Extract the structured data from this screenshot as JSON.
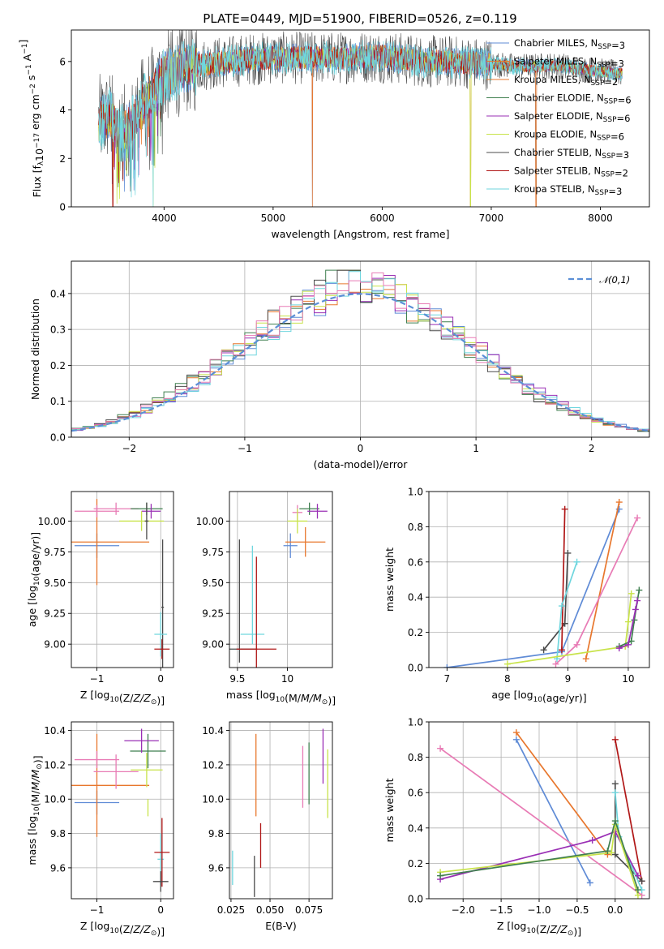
{
  "title": "PLATE=0449, MJD=51900, FIBERID=0526, z=0.119",
  "colors": {
    "chabrier_miles": "#5f8bd6",
    "salpeter_miles": "#e8772d",
    "kroupa_miles": "#e8772d",
    "chabrier_elodie": "#3f7f4f",
    "salpeter_elodie": "#9a2fb5",
    "kroupa_elodie": "#c8e34a",
    "chabrier_stelib": "#4b4b4b",
    "salpeter_stelib": "#b01717",
    "kroupa_stelib": "#6fd6de",
    "pink": "#e87bb5",
    "gaussian": "#5b8fd6",
    "grid": "#b0b0b0"
  },
  "chart_data": [
    {
      "id": "spectrum",
      "type": "line",
      "xlabel": "wavelength [Angstrom, rest frame]",
      "ylabel": "Flux [f_λ10^-17 erg cm^-2 s^-1 A^-1]",
      "xlim": [
        3150,
        8450
      ],
      "ylim": [
        0,
        7.3
      ],
      "xticks": [
        4000,
        5000,
        6000,
        7000,
        8000
      ],
      "yticks": [
        0,
        2,
        4,
        6
      ],
      "x_range_data": [
        3400,
        8200
      ],
      "profile_x": [
        3400,
        3450,
        3500,
        3550,
        3600,
        3700,
        3800,
        3900,
        4000,
        4100,
        4200,
        4400,
        4600,
        4800,
        5000,
        5200,
        5400,
        5600,
        5800,
        6000,
        6200,
        6400,
        6600,
        6800,
        7000,
        7200,
        7400,
        7600,
        7800,
        8000,
        8200
      ],
      "profile_y": [
        3.5,
        3.6,
        3.8,
        3.3,
        3.0,
        3.3,
        4.2,
        4.7,
        5.4,
        5.6,
        5.8,
        5.9,
        6.0,
        6.1,
        6.15,
        6.15,
        6.15,
        6.15,
        6.2,
        6.2,
        6.1,
        6.0,
        6.0,
        5.95,
        5.9,
        5.8,
        5.8,
        5.85,
        5.7,
        5.6,
        5.5
      ],
      "legend": [
        {
          "label": "Chabrier MILES, N_SSP=3",
          "color_key": "chabrier_miles"
        },
        {
          "label": "Salpeter MILES, N_SSP=3",
          "color_key": "salpeter_miles"
        },
        {
          "label": "Kroupa MILES, N_SSP=2",
          "color_key": "kroupa_miles"
        },
        {
          "label": "Chabrier ELODIE, N_SSP=6",
          "color_key": "chabrier_elodie"
        },
        {
          "label": "Salpeter ELODIE, N_SSP=6",
          "color_key": "salpeter_elodie"
        },
        {
          "label": "Kroupa ELODIE, N_SSP=6",
          "color_key": "kroupa_elodie"
        },
        {
          "label": "Chabrier STELIB, N_SSP=3",
          "color_key": "chabrier_stelib"
        },
        {
          "label": "Salpeter STELIB, N_SSP=2",
          "color_key": "salpeter_stelib"
        },
        {
          "label": "Kroupa STELIB, N_SSP=3",
          "color_key": "kroupa_stelib"
        }
      ]
    },
    {
      "id": "residuals",
      "type": "histogram",
      "xlabel": "(data-model)/error",
      "ylabel": "Normed distribution",
      "xlim": [
        -2.5,
        2.5
      ],
      "ylim": [
        0,
        0.49
      ],
      "xticks": [
        -2,
        -1,
        0,
        1,
        2
      ],
      "yticks": [
        0.0,
        0.1,
        0.2,
        0.3,
        0.4
      ],
      "legend": "𝒩(0,1)",
      "bin_width": 0.1,
      "n_bins": 50
    },
    {
      "id": "age_vs_Z",
      "type": "errorbar",
      "xlabel": "Z [log10(Z/Z⊙)]",
      "ylabel": "age  [log10(age/yr)]",
      "xlim": [
        -1.4,
        0.2
      ],
      "ylim": [
        8.81,
        10.24
      ],
      "xticks": [
        -1,
        0
      ],
      "yticks": [
        9.0,
        9.25,
        9.5,
        9.75,
        10.0
      ],
      "points": [
        {
          "c": "chabrier_miles",
          "x": -1.0,
          "xerr": 0.35,
          "y": 9.8,
          "yerr": 0.1
        },
        {
          "c": "salpeter_miles",
          "x": -1.0,
          "xerr": 0.82,
          "y": 9.83,
          "yerr": 0.35
        },
        {
          "c": "pink",
          "x": -1.0,
          "xerr": 0.35,
          "y": 10.08,
          "yerr": 0.05
        },
        {
          "c": "pink",
          "x": -0.7,
          "xerr": 0.35,
          "y": 10.1,
          "yerr": 0.05
        },
        {
          "c": "chabrier_elodie",
          "x": -0.22,
          "xerr": 0.25,
          "y": 10.1,
          "yerr": 0.05
        },
        {
          "c": "salpeter_elodie",
          "x": -0.15,
          "xerr": 0.15,
          "y": 10.08,
          "yerr": 0.06
        },
        {
          "c": "kroupa_elodie",
          "x": -0.3,
          "xerr": 0.35,
          "y": 10.0,
          "yerr": 0.08
        },
        {
          "c": "chabrier_stelib",
          "x": -0.22,
          "xerr": 0.03,
          "y": 10.0,
          "yerr": 0.15
        },
        {
          "c": "chabrier_stelib",
          "x": 0.03,
          "xerr": 0.02,
          "y": 9.3,
          "yerr": 0.55
        },
        {
          "c": "kroupa_stelib",
          "x": 0.0,
          "xerr": 0.1,
          "y": 9.08,
          "yerr": 0.18
        },
        {
          "c": "salpeter_stelib",
          "x": 0.02,
          "xerr": 0.12,
          "y": 8.96,
          "yerr": 0.08
        }
      ]
    },
    {
      "id": "age_vs_mass",
      "type": "errorbar",
      "xlabel": "mass [log10(M/M⊙)]",
      "ylabel": "",
      "xlim": [
        9.42,
        10.45
      ],
      "ylim": [
        8.81,
        10.24
      ],
      "xticks": [
        9.5,
        10.0
      ],
      "yticks": [
        9.0,
        9.25,
        9.5,
        9.75,
        10.0
      ],
      "points": [
        {
          "c": "chabrier_stelib",
          "x": 9.52,
          "xerr": 0.0,
          "y": 9.35,
          "yerr": 0.5
        },
        {
          "c": "chabrier_stelib",
          "x": 9.52,
          "xerr": 0.18,
          "y": 8.96,
          "yerr": 0.0
        },
        {
          "c": "kroupa_stelib",
          "x": 9.65,
          "xerr": 0.0,
          "y": 9.4,
          "yerr": 0.4
        },
        {
          "c": "kroupa_stelib",
          "x": 9.65,
          "xerr": 0.12,
          "y": 9.08,
          "yerr": 0.0
        },
        {
          "c": "salpeter_stelib",
          "x": 9.69,
          "xerr": 0.2,
          "y": 8.96,
          "yerr": 0.75
        },
        {
          "c": "chabrier_miles",
          "x": 10.03,
          "xerr": 0.07,
          "y": 9.8,
          "yerr": 0.1
        },
        {
          "c": "salpeter_miles",
          "x": 10.18,
          "xerr": 0.2,
          "y": 9.83,
          "yerr": 0.12
        },
        {
          "c": "pink",
          "x": 10.1,
          "xerr": 0.05,
          "y": 10.07,
          "yerr": 0.06
        },
        {
          "c": "kroupa_elodie",
          "x": 10.1,
          "xerr": 0.1,
          "y": 10.0,
          "yerr": 0.1
        },
        {
          "c": "chabrier_elodie",
          "x": 10.22,
          "xerr": 0.1,
          "y": 10.1,
          "yerr": 0.05
        },
        {
          "c": "salpeter_elodie",
          "x": 10.3,
          "xerr": 0.1,
          "y": 10.08,
          "yerr": 0.06
        }
      ]
    },
    {
      "id": "mass_weight_vs_age",
      "type": "line",
      "xlabel": "age  [log10(age/yr)]",
      "ylabel": "mass weight",
      "xlim": [
        6.7,
        10.35
      ],
      "ylim": [
        0,
        1.0
      ],
      "xticks": [
        7,
        8,
        9,
        10
      ],
      "yticks": [
        0.0,
        0.2,
        0.4,
        0.6,
        0.8,
        1.0
      ],
      "series": [
        {
          "c": "chabrier_miles",
          "x": [
            7.0,
            8.9,
            9.85
          ],
          "y": [
            0.0,
            0.09,
            0.9
          ]
        },
        {
          "c": "salpeter_miles",
          "x": [
            9.3,
            9.85
          ],
          "y": [
            0.05,
            0.94
          ]
        },
        {
          "c": "pink",
          "x": [
            8.8,
            9.15,
            10.15
          ],
          "y": [
            0.02,
            0.13,
            0.85
          ]
        },
        {
          "c": "chabrier_stelib",
          "x": [
            8.6,
            8.95,
            9.0
          ],
          "y": [
            0.1,
            0.25,
            0.65
          ]
        },
        {
          "c": "salpeter_stelib",
          "x": [
            8.9,
            8.95
          ],
          "y": [
            0.1,
            0.9
          ]
        },
        {
          "c": "kroupa_stelib",
          "x": [
            8.82,
            8.9,
            9.15
          ],
          "y": [
            0.05,
            0.35,
            0.6
          ]
        },
        {
          "c": "kroupa_elodie",
          "x": [
            8.0,
            9.95,
            10.0,
            10.05
          ],
          "y": [
            0.02,
            0.12,
            0.26,
            0.42
          ]
        },
        {
          "c": "chabrier_elodie",
          "x": [
            9.85,
            10.05,
            10.1,
            10.18
          ],
          "y": [
            0.12,
            0.15,
            0.27,
            0.44
          ]
        },
        {
          "c": "salpeter_elodie",
          "x": [
            9.85,
            10.0,
            10.12,
            10.15
          ],
          "y": [
            0.11,
            0.13,
            0.33,
            0.38
          ]
        }
      ]
    },
    {
      "id": "mass_vs_Z",
      "type": "errorbar",
      "xlabel": "Z [log10(Z/Z⊙)]",
      "ylabel": "mass [log10(M/M⊙)]",
      "xlim": [
        -1.4,
        0.2
      ],
      "ylim": [
        9.42,
        10.45
      ],
      "xticks": [
        -1,
        0
      ],
      "yticks": [
        9.6,
        9.8,
        10.0,
        10.2,
        10.4
      ],
      "points": [
        {
          "c": "chabrier_miles",
          "x": -1.0,
          "xerr": 0.35,
          "y": 9.98,
          "yerr": 0.07
        },
        {
          "c": "salpeter_miles",
          "x": -1.0,
          "xerr": 0.82,
          "y": 10.08,
          "yerr": 0.3
        },
        {
          "c": "pink",
          "x": -1.0,
          "xerr": 0.35,
          "y": 10.23,
          "yerr": 0.05
        },
        {
          "c": "pink",
          "x": -0.7,
          "xerr": 0.35,
          "y": 10.16,
          "yerr": 0.1
        },
        {
          "c": "chabrier_elodie",
          "x": -0.2,
          "xerr": 0.28,
          "y": 10.28,
          "yerr": 0.1
        },
        {
          "c": "salpeter_elodie",
          "x": -0.3,
          "xerr": 0.27,
          "y": 10.34,
          "yerr": 0.07
        },
        {
          "c": "kroupa_elodie",
          "x": -0.22,
          "xerr": 0.25,
          "y": 10.17,
          "yerr": 0.1
        },
        {
          "c": "kroupa_elodie",
          "x": -0.2,
          "xerr": 0.0,
          "y": 9.95,
          "yerr": 0.05
        },
        {
          "c": "kroupa_stelib",
          "x": 0.0,
          "xerr": 0.05,
          "y": 9.65,
          "yerr": 0.15
        },
        {
          "c": "salpeter_stelib",
          "x": 0.02,
          "xerr": 0.12,
          "y": 9.69,
          "yerr": 0.2
        },
        {
          "c": "chabrier_stelib",
          "x": 0.0,
          "xerr": 0.12,
          "y": 9.52,
          "yerr": 0.06
        }
      ]
    },
    {
      "id": "mass_vs_ebv",
      "type": "errorbar",
      "xlabel": "E(B-V)",
      "ylabel": "",
      "xlim": [
        0.024,
        0.09
      ],
      "ylim": [
        9.42,
        10.45
      ],
      "xticks": [
        0.025,
        0.05,
        0.075
      ],
      "xticklabels": [
        "0.025",
        "0.050",
        "0.075"
      ],
      "yticks": [
        9.6,
        9.8,
        10.0,
        10.2,
        10.4
      ],
      "points": [
        {
          "c": "kroupa_stelib",
          "x": 0.026,
          "xerr": 0,
          "y": 9.6,
          "yerr": 0.1
        },
        {
          "c": "chabrier_stelib",
          "x": 0.04,
          "xerr": 0,
          "y": 9.55,
          "yerr": 0.12
        },
        {
          "c": "salpeter_stelib",
          "x": 0.044,
          "xerr": 0,
          "y": 9.73,
          "yerr": 0.13
        },
        {
          "c": "salpeter_miles",
          "x": 0.041,
          "xerr": 0,
          "y": 10.14,
          "yerr": 0.24
        },
        {
          "c": "pink",
          "x": 0.071,
          "xerr": 0,
          "y": 10.13,
          "yerr": 0.18
        },
        {
          "c": "chabrier_elodie",
          "x": 0.075,
          "xerr": 0,
          "y": 10.15,
          "yerr": 0.18
        },
        {
          "c": "salpeter_elodie",
          "x": 0.084,
          "xerr": 0,
          "y": 10.25,
          "yerr": 0.16
        },
        {
          "c": "kroupa_elodie",
          "x": 0.087,
          "xerr": 0,
          "y": 10.09,
          "yerr": 0.2
        }
      ]
    },
    {
      "id": "mass_weight_vs_Z",
      "type": "line",
      "xlabel": "Z [log10(Z/Z⊙)]",
      "ylabel": "mass weight",
      "xlim": [
        -2.45,
        0.45
      ],
      "ylim": [
        0,
        1.0
      ],
      "xticks": [
        -2.0,
        -1.5,
        -1.0,
        -0.5,
        0.0
      ],
      "xticklabels": [
        "−2.0",
        "−1.5",
        "−1.0",
        "−0.5",
        "0.0"
      ],
      "yticks": [
        0.0,
        0.2,
        0.4,
        0.6,
        0.8,
        1.0
      ],
      "series": [
        {
          "c": "chabrier_miles",
          "x": [
            -1.3,
            -0.33
          ],
          "y": [
            0.9,
            0.09
          ]
        },
        {
          "c": "salpeter_miles",
          "x": [
            -1.3,
            -0.1
          ],
          "y": [
            0.94,
            0.25
          ]
        },
        {
          "c": "pink",
          "x": [
            -2.3,
            0.35
          ],
          "y": [
            0.85,
            0.02
          ]
        },
        {
          "c": "salpeter_stelib",
          "x": [
            0.0,
            0.35
          ],
          "y": [
            0.9,
            0.1
          ]
        },
        {
          "c": "chabrier_stelib",
          "x": [
            0.0,
            0.0,
            0.35
          ],
          "y": [
            0.65,
            0.25,
            0.1
          ]
        },
        {
          "c": "kroupa_stelib",
          "x": [
            0.0,
            0.05,
            0.35
          ],
          "y": [
            0.6,
            0.35,
            0.05
          ]
        },
        {
          "c": "salpeter_elodie",
          "x": [
            -2.3,
            -0.3,
            0.0,
            0.3
          ],
          "y": [
            0.11,
            0.33,
            0.38,
            0.13
          ]
        },
        {
          "c": "kroupa_elodie",
          "x": [
            -2.3,
            -0.05,
            0.0,
            0.3
          ],
          "y": [
            0.15,
            0.26,
            0.42,
            0.02
          ]
        },
        {
          "c": "chabrier_elodie",
          "x": [
            -2.3,
            -0.1,
            0.0,
            0.3
          ],
          "y": [
            0.13,
            0.27,
            0.44,
            0.05
          ]
        }
      ]
    }
  ]
}
